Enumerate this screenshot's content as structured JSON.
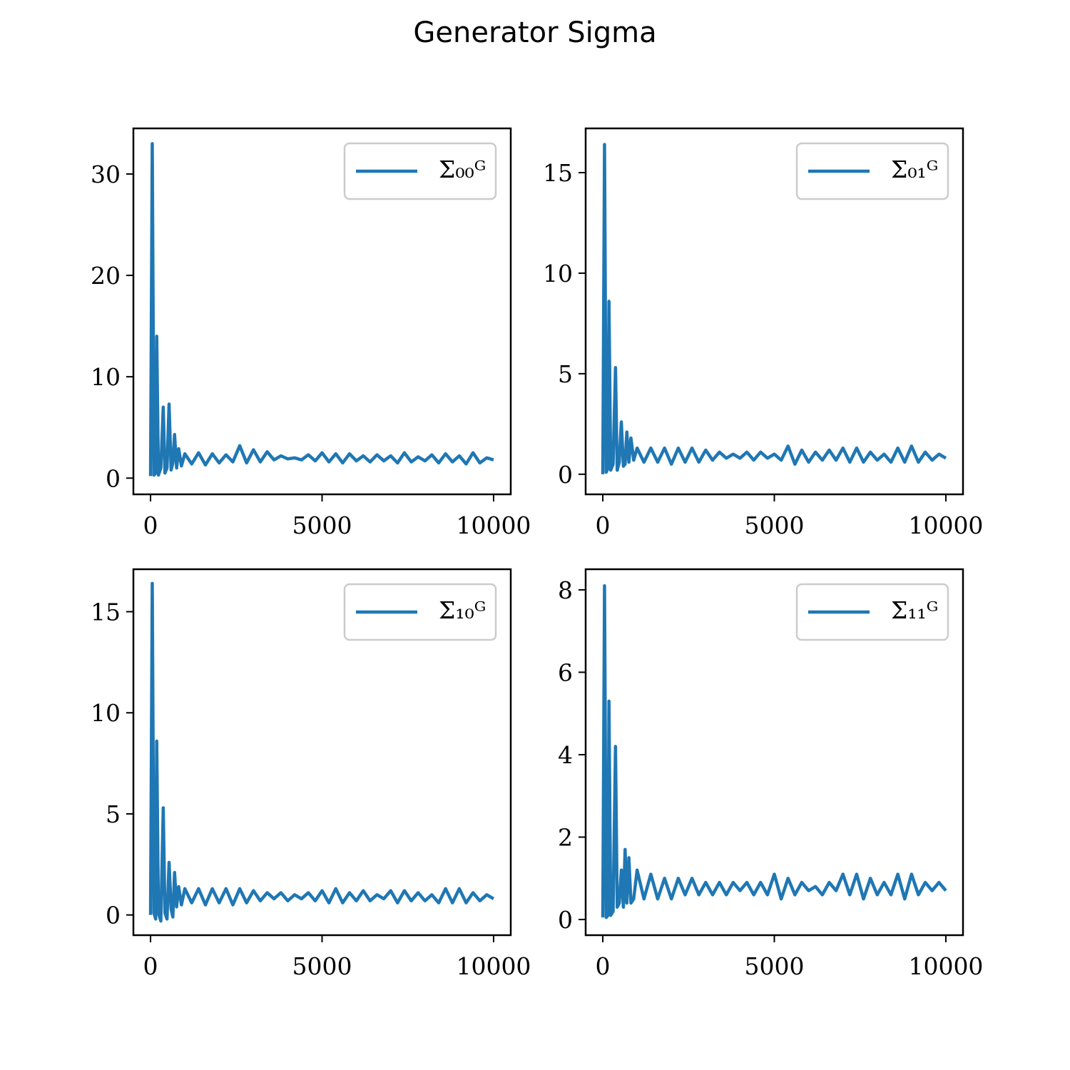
{
  "title": "Generator Sigma",
  "chart_data": [
    {
      "type": "line",
      "x": [
        0,
        50,
        100,
        150,
        180,
        230,
        300,
        370,
        420,
        480,
        540,
        600,
        650,
        700,
        760,
        820,
        900,
        1000,
        1200,
        1400,
        1600,
        1800,
        2000,
        2200,
        2400,
        2600,
        2800,
        3000,
        3200,
        3400,
        3600,
        3800,
        4000,
        4200,
        4400,
        4600,
        4800,
        5000,
        5200,
        5400,
        5600,
        5800,
        6000,
        6200,
        6400,
        6600,
        6800,
        7000,
        7200,
        7400,
        7600,
        7800,
        8000,
        8200,
        8400,
        8600,
        8800,
        9000,
        9200,
        9400,
        9600,
        9800,
        10000
      ],
      "series": [
        {
          "name": "Σ₀₀ᴳ",
          "color": "#1f77b4",
          "values": [
            0.2,
            33,
            0.3,
            0.5,
            14,
            0.3,
            1,
            7,
            0.5,
            1,
            7.3,
            0.8,
            1.5,
            4.3,
            1,
            2.9,
            1.2,
            2.4,
            1.4,
            2.5,
            1.3,
            2.4,
            1.5,
            2.3,
            1.6,
            3.2,
            1.5,
            2.8,
            1.6,
            2.6,
            1.8,
            2.2,
            1.9,
            2.0,
            1.8,
            2.3,
            1.7,
            2.5,
            1.6,
            2.4,
            1.5,
            2.4,
            1.7,
            2.2,
            1.6,
            2.3,
            1.7,
            2.2,
            1.5,
            2.5,
            1.6,
            2.1,
            1.7,
            2.3,
            1.5,
            2.4,
            1.6,
            2.2,
            1.4,
            2.5,
            1.5,
            2.0,
            1.8
          ]
        }
      ],
      "xlim": [
        -500,
        10500
      ],
      "ylim": [
        -1.6,
        34.5
      ],
      "xticks": [
        0,
        5000,
        10000
      ],
      "yticks": [
        0,
        10,
        20,
        30
      ],
      "legend": "upper right"
    },
    {
      "type": "line",
      "x": [
        0,
        50,
        100,
        150,
        180,
        230,
        300,
        370,
        420,
        480,
        540,
        600,
        650,
        700,
        760,
        820,
        900,
        1000,
        1200,
        1400,
        1600,
        1800,
        2000,
        2200,
        2400,
        2600,
        2800,
        3000,
        3200,
        3400,
        3600,
        3800,
        4000,
        4200,
        4400,
        4600,
        4800,
        5000,
        5200,
        5400,
        5600,
        5800,
        6000,
        6200,
        6400,
        6600,
        6800,
        7000,
        7200,
        7400,
        7600,
        7800,
        8000,
        8200,
        8400,
        8600,
        8800,
        9000,
        9200,
        9400,
        9600,
        9800,
        10000
      ],
      "series": [
        {
          "name": "Σ₀₁ᴳ",
          "color": "#1f77b4",
          "values": [
            0,
            16.4,
            0.1,
            0.3,
            8.6,
            0.2,
            0.5,
            5.3,
            0.2,
            0.6,
            2.6,
            0.4,
            0.5,
            2.1,
            0.6,
            1.8,
            0.7,
            1.3,
            0.6,
            1.3,
            0.6,
            1.3,
            0.5,
            1.3,
            0.6,
            1.3,
            0.6,
            1.2,
            0.7,
            1.1,
            0.8,
            1.0,
            0.8,
            1.1,
            0.7,
            1.1,
            0.8,
            1.0,
            0.7,
            1.4,
            0.5,
            1.2,
            0.6,
            1.1,
            0.7,
            1.2,
            0.7,
            1.3,
            0.6,
            1.3,
            0.6,
            1.1,
            0.7,
            1.0,
            0.6,
            1.3,
            0.6,
            1.4,
            0.6,
            1.1,
            0.7,
            1.0,
            0.8
          ]
        }
      ],
      "xlim": [
        -500,
        10500
      ],
      "ylim": [
        -1.0,
        17.2
      ],
      "xticks": [
        0,
        5000,
        10000
      ],
      "yticks": [
        0,
        5,
        10,
        15
      ],
      "legend": "upper right"
    },
    {
      "type": "line",
      "x": [
        0,
        50,
        100,
        150,
        180,
        230,
        300,
        370,
        420,
        480,
        540,
        600,
        650,
        700,
        760,
        820,
        900,
        1000,
        1200,
        1400,
        1600,
        1800,
        2000,
        2200,
        2400,
        2600,
        2800,
        3000,
        3200,
        3400,
        3600,
        3800,
        4000,
        4200,
        4400,
        4600,
        4800,
        5000,
        5200,
        5400,
        5600,
        5800,
        6000,
        6200,
        6400,
        6600,
        6800,
        7000,
        7200,
        7400,
        7600,
        7800,
        8000,
        8200,
        8400,
        8600,
        8800,
        9000,
        9200,
        9400,
        9600,
        9800,
        10000
      ],
      "series": [
        {
          "name": "Σ₁₀ᴳ",
          "color": "#1f77b4",
          "values": [
            0,
            16.4,
            0.1,
            -0.2,
            8.6,
            0.1,
            -0.3,
            5.3,
            0.1,
            -0.2,
            2.6,
            0.3,
            -0.1,
            2.1,
            0.4,
            1.4,
            0.5,
            1.3,
            0.6,
            1.3,
            0.5,
            1.3,
            0.6,
            1.3,
            0.5,
            1.3,
            0.6,
            1.2,
            0.7,
            1.1,
            0.8,
            1.1,
            0.7,
            1.0,
            0.8,
            1.1,
            0.7,
            1.2,
            0.6,
            1.3,
            0.6,
            1.1,
            0.7,
            1.2,
            0.7,
            1.0,
            0.8,
            1.2,
            0.6,
            1.2,
            0.7,
            1.1,
            0.7,
            1.0,
            0.6,
            1.3,
            0.6,
            1.3,
            0.6,
            1.1,
            0.7,
            1.0,
            0.8
          ]
        }
      ],
      "xlim": [
        -500,
        10500
      ],
      "ylim": [
        -1.0,
        17.1
      ],
      "xticks": [
        0,
        5000,
        10000
      ],
      "yticks": [
        0,
        5,
        10,
        15
      ],
      "legend": "upper right"
    },
    {
      "type": "line",
      "x": [
        0,
        50,
        100,
        150,
        180,
        230,
        300,
        370,
        420,
        480,
        540,
        600,
        650,
        700,
        760,
        820,
        900,
        1000,
        1200,
        1400,
        1600,
        1800,
        2000,
        2200,
        2400,
        2600,
        2800,
        3000,
        3200,
        3400,
        3600,
        3800,
        4000,
        4200,
        4400,
        4600,
        4800,
        5000,
        5200,
        5400,
        5600,
        5800,
        6000,
        6200,
        6400,
        6600,
        6800,
        7000,
        7200,
        7400,
        7600,
        7800,
        8000,
        8200,
        8400,
        8600,
        8800,
        9000,
        9200,
        9400,
        9600,
        9800,
        10000
      ],
      "series": [
        {
          "name": "Σ₁₁ᴳ",
          "color": "#1f77b4",
          "values": [
            0.05,
            8.1,
            0.05,
            0.1,
            5.3,
            0.1,
            0.2,
            4.2,
            0.3,
            0.4,
            1.2,
            0.3,
            1.7,
            0.4,
            1.5,
            0.4,
            0.5,
            1.2,
            0.5,
            1.1,
            0.5,
            1.0,
            0.5,
            1.0,
            0.6,
            1.0,
            0.6,
            0.9,
            0.6,
            0.9,
            0.6,
            0.9,
            0.7,
            0.9,
            0.6,
            0.9,
            0.6,
            1.1,
            0.5,
            1.0,
            0.6,
            0.9,
            0.7,
            0.8,
            0.6,
            0.9,
            0.7,
            1.1,
            0.6,
            1.1,
            0.5,
            1.0,
            0.6,
            0.9,
            0.6,
            1.1,
            0.5,
            1.1,
            0.6,
            0.9,
            0.7,
            0.9,
            0.7
          ]
        }
      ],
      "xlim": [
        -500,
        10500
      ],
      "ylim": [
        -0.38,
        8.5
      ],
      "xticks": [
        0,
        5000,
        10000
      ],
      "yticks": [
        0,
        2,
        4,
        6,
        8
      ],
      "legend": "upper right"
    }
  ]
}
